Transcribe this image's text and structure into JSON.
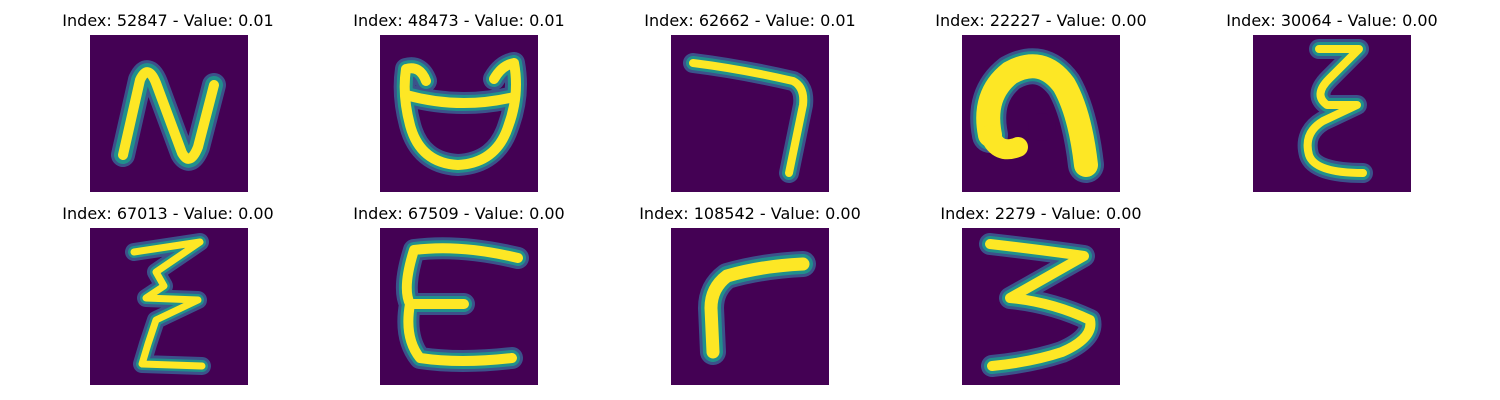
{
  "colors": {
    "background_cell": "#440154",
    "stroke_mid": "#21908c",
    "stroke_core": "#fde725",
    "stroke_edge": "#3b528b"
  },
  "tiles": [
    {
      "title": "Index: 52847 - Value: 0.01",
      "glyph": "n-shape"
    },
    {
      "title": "Index: 48473 - Value: 0.01",
      "glyph": "cup-shape"
    },
    {
      "title": "Index: 62662 - Value: 0.01",
      "glyph": "seven-shape"
    },
    {
      "title": "Index: 22227 - Value: 0.00",
      "glyph": "hook-shape"
    },
    {
      "title": "Index: 30064 - Value: 0.00",
      "glyph": "zigzag-e-shape"
    },
    {
      "title": "Index: 67013 - Value: 0.00",
      "glyph": "zigzag-z-shape"
    },
    {
      "title": "Index: 67509 - Value: 0.00",
      "glyph": "e-shape"
    },
    {
      "title": "Index: 108542 - Value: 0.00",
      "glyph": "r-shape"
    },
    {
      "title": "Index: 2279 - Value: 0.00",
      "glyph": "three-shape"
    }
  ]
}
